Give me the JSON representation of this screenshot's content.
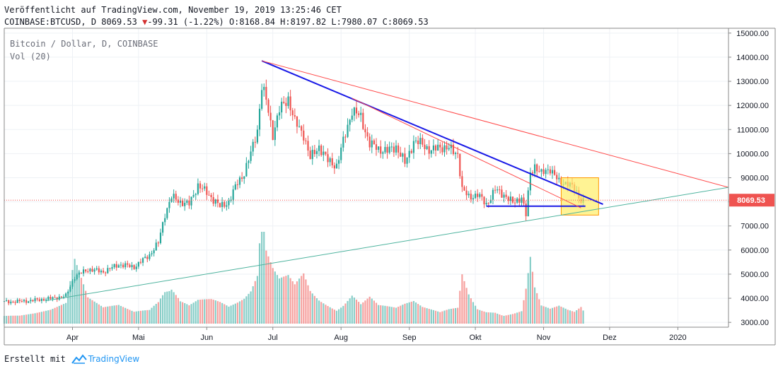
{
  "header": {
    "published": "Veröffentlicht auf TradingView.com, November 19, 2019 13:25:46 CET",
    "symbol": "COINBASE:BTCUSD, D",
    "last": "8069.53",
    "change_arrow": "▼",
    "change": "-99.31 (-1.22%)",
    "ohlc": "O:8168.84 H:8197.82 L:7980.07 C:8069.53"
  },
  "overlay": {
    "series_title": "Bitcoin / Dollar, D, COINBASE",
    "vol_label": "Vol (20)"
  },
  "footer": {
    "created_with": "Erstellt mit",
    "brand": "TradingView"
  },
  "colors": {
    "up": "#26a69a",
    "down": "#ef5350",
    "blue_trend": "#1919e6",
    "red_trend": "#ff4a4a",
    "green_trend": "#4db39e",
    "highlight_fill": "#ffee66",
    "highlight_border": "#ff9800",
    "price_label_bg": "#ef5350"
  },
  "chart_data": {
    "type": "candlestick",
    "title": "Bitcoin / Dollar, D, COINBASE",
    "x_range": [
      "2019-03-01",
      "2020-01-24"
    ],
    "y_range": [
      2800,
      15200
    ],
    "y_ticks": [
      "15000.00",
      "14000.00",
      "13000.00",
      "12000.00",
      "11000.00",
      "10000.00",
      "9000.00",
      "8000.00",
      "7000.00",
      "6000.00",
      "5000.00",
      "4000.00",
      "3000.00"
    ],
    "x_ticks": [
      {
        "label": "Apr",
        "date": "2019-04-01"
      },
      {
        "label": "Mai",
        "date": "2019-05-01"
      },
      {
        "label": "Jun",
        "date": "2019-06-01"
      },
      {
        "label": "Jul",
        "date": "2019-07-01"
      },
      {
        "label": "Aug",
        "date": "2019-08-01"
      },
      {
        "label": "Sep",
        "date": "2019-09-01"
      },
      {
        "label": "Okt",
        "date": "2019-10-01"
      },
      {
        "label": "Nov",
        "date": "2019-11-01"
      },
      {
        "label": "Dez",
        "date": "2019-12-01"
      },
      {
        "label": "2020",
        "date": "2020-01-01"
      }
    ],
    "last_price": "8069.53",
    "last_price_value": 8069.53,
    "volume_scale_max": 1.0,
    "closes": [
      [
        "2019-03-01",
        3850
      ],
      [
        "2019-03-08",
        3870
      ],
      [
        "2019-03-15",
        3920
      ],
      [
        "2019-03-22",
        3990
      ],
      [
        "2019-03-29",
        4100
      ],
      [
        "2019-04-02",
        4900
      ],
      [
        "2019-04-08",
        5200
      ],
      [
        "2019-04-15",
        5100
      ],
      [
        "2019-04-22",
        5400
      ],
      [
        "2019-04-29",
        5300
      ],
      [
        "2019-05-06",
        5800
      ],
      [
        "2019-05-10",
        6300
      ],
      [
        "2019-05-13",
        7500
      ],
      [
        "2019-05-16",
        8200
      ],
      [
        "2019-05-20",
        8000
      ],
      [
        "2019-05-24",
        7900
      ],
      [
        "2019-05-28",
        8700
      ],
      [
        "2019-06-03",
        8200
      ],
      [
        "2019-06-07",
        7800
      ],
      [
        "2019-06-11",
        8000
      ],
      [
        "2019-06-15",
        8800
      ],
      [
        "2019-06-18",
        9200
      ],
      [
        "2019-06-21",
        10000
      ],
      [
        "2019-06-24",
        11000
      ],
      [
        "2019-06-26",
        12800
      ],
      [
        "2019-06-28",
        12200
      ],
      [
        "2019-07-01",
        10800
      ],
      [
        "2019-07-04",
        11800
      ],
      [
        "2019-07-08",
        12300
      ],
      [
        "2019-07-11",
        11300
      ],
      [
        "2019-07-15",
        10800
      ],
      [
        "2019-07-18",
        9800
      ],
      [
        "2019-07-22",
        10300
      ],
      [
        "2019-07-26",
        9700
      ],
      [
        "2019-07-30",
        9500
      ],
      [
        "2019-08-02",
        10500
      ],
      [
        "2019-08-06",
        11800
      ],
      [
        "2019-08-10",
        11500
      ],
      [
        "2019-08-14",
        10400
      ],
      [
        "2019-08-18",
        10200
      ],
      [
        "2019-08-22",
        10100
      ],
      [
        "2019-08-26",
        10300
      ],
      [
        "2019-08-30",
        9600
      ],
      [
        "2019-09-03",
        10500
      ],
      [
        "2019-09-07",
        10400
      ],
      [
        "2019-09-11",
        10100
      ],
      [
        "2019-09-15",
        10300
      ],
      [
        "2019-09-19",
        10200
      ],
      [
        "2019-09-23",
        10000
      ],
      [
        "2019-09-25",
        8500
      ],
      [
        "2019-09-28",
        8200
      ],
      [
        "2019-10-02",
        8300
      ],
      [
        "2019-10-06",
        7900
      ],
      [
        "2019-10-10",
        8500
      ],
      [
        "2019-10-14",
        8300
      ],
      [
        "2019-10-18",
        7950
      ],
      [
        "2019-10-22",
        8200
      ],
      [
        "2019-10-24",
        7450
      ],
      [
        "2019-10-26",
        9200
      ],
      [
        "2019-10-28",
        9500
      ],
      [
        "2019-10-31",
        9150
      ],
      [
        "2019-11-04",
        9400
      ],
      [
        "2019-11-08",
        8800
      ],
      [
        "2019-11-12",
        8800
      ],
      [
        "2019-11-15",
        8500
      ],
      [
        "2019-11-18",
        8100
      ],
      [
        "2019-11-19",
        8069.53
      ]
    ],
    "volumes": [
      [
        "2019-03-01",
        0.12
      ],
      [
        "2019-03-08",
        0.1
      ],
      [
        "2019-03-15",
        0.11
      ],
      [
        "2019-03-22",
        0.13
      ],
      [
        "2019-03-29",
        0.18
      ],
      [
        "2019-04-02",
        0.55
      ],
      [
        "2019-04-08",
        0.22
      ],
      [
        "2019-04-15",
        0.14
      ],
      [
        "2019-04-22",
        0.17
      ],
      [
        "2019-04-29",
        0.12
      ],
      [
        "2019-05-06",
        0.16
      ],
      [
        "2019-05-10",
        0.28
      ],
      [
        "2019-05-13",
        0.45
      ],
      [
        "2019-05-16",
        0.52
      ],
      [
        "2019-05-20",
        0.3
      ],
      [
        "2019-05-24",
        0.22
      ],
      [
        "2019-05-28",
        0.26
      ],
      [
        "2019-06-03",
        0.24
      ],
      [
        "2019-06-07",
        0.2
      ],
      [
        "2019-06-11",
        0.15
      ],
      [
        "2019-06-15",
        0.18
      ],
      [
        "2019-06-18",
        0.21
      ],
      [
        "2019-06-21",
        0.27
      ],
      [
        "2019-06-24",
        0.4
      ],
      [
        "2019-06-26",
        0.95
      ],
      [
        "2019-06-28",
        0.62
      ],
      [
        "2019-07-01",
        0.48
      ],
      [
        "2019-07-04",
        0.4
      ],
      [
        "2019-07-08",
        0.45
      ],
      [
        "2019-07-11",
        0.38
      ],
      [
        "2019-07-15",
        0.52
      ],
      [
        "2019-07-18",
        0.36
      ],
      [
        "2019-07-22",
        0.28
      ],
      [
        "2019-07-26",
        0.24
      ],
      [
        "2019-07-30",
        0.2
      ],
      [
        "2019-08-02",
        0.25
      ],
      [
        "2019-08-06",
        0.35
      ],
      [
        "2019-08-10",
        0.22
      ],
      [
        "2019-08-14",
        0.28
      ],
      [
        "2019-08-18",
        0.18
      ],
      [
        "2019-08-22",
        0.16
      ],
      [
        "2019-08-26",
        0.14
      ],
      [
        "2019-08-30",
        0.17
      ],
      [
        "2019-09-03",
        0.19
      ],
      [
        "2019-09-07",
        0.14
      ],
      [
        "2019-09-11",
        0.12
      ],
      [
        "2019-09-15",
        0.1
      ],
      [
        "2019-09-19",
        0.13
      ],
      [
        "2019-09-23",
        0.15
      ],
      [
        "2019-09-25",
        0.48
      ],
      [
        "2019-09-28",
        0.3
      ],
      [
        "2019-10-02",
        0.16
      ],
      [
        "2019-10-06",
        0.14
      ],
      [
        "2019-10-10",
        0.15
      ],
      [
        "2019-10-14",
        0.12
      ],
      [
        "2019-10-18",
        0.13
      ],
      [
        "2019-10-22",
        0.15
      ],
      [
        "2019-10-24",
        0.4
      ],
      [
        "2019-10-26",
        0.73
      ],
      [
        "2019-10-28",
        0.38
      ],
      [
        "2019-10-31",
        0.18
      ],
      [
        "2019-11-04",
        0.14
      ],
      [
        "2019-11-08",
        0.16
      ],
      [
        "2019-11-12",
        0.12
      ],
      [
        "2019-11-15",
        0.1
      ],
      [
        "2019-11-18",
        0.14
      ],
      [
        "2019-11-19",
        0.11
      ]
    ],
    "trendlines": [
      {
        "kind": "blue",
        "points": [
          [
            "2019-06-26",
            13850
          ],
          [
            "2019-11-28",
            7900
          ]
        ]
      },
      {
        "kind": "blue",
        "points": [
          [
            "2019-10-06",
            7820
          ],
          [
            "2019-11-20",
            7820
          ]
        ]
      },
      {
        "kind": "red",
        "points": [
          [
            "2019-06-26",
            13850
          ],
          [
            "2020-01-24",
            8600
          ]
        ]
      },
      {
        "kind": "red",
        "points": [
          [
            "2019-08-06",
            12300
          ],
          [
            "2019-11-18",
            7750
          ]
        ]
      },
      {
        "kind": "green",
        "points": [
          [
            "2019-03-20",
            3900
          ],
          [
            "2020-01-24",
            8600
          ]
        ]
      }
    ],
    "highlight_box": {
      "x": [
        "2019-11-09",
        "2019-11-26"
      ],
      "y": [
        7450,
        9000
      ]
    },
    "grid": true
  }
}
